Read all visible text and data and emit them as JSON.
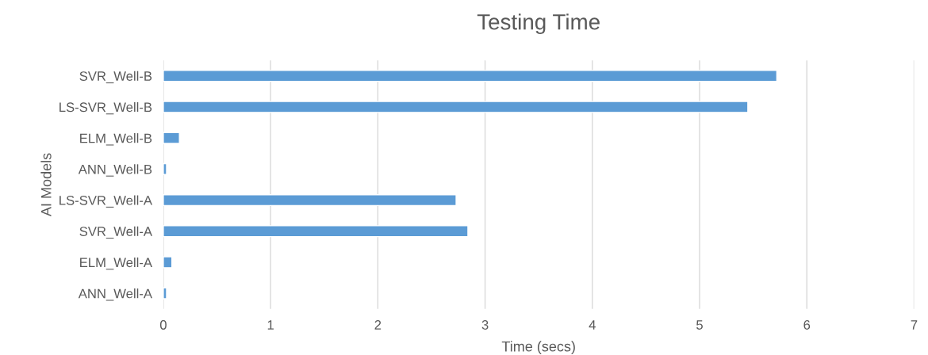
{
  "chart_data": {
    "type": "bar",
    "orientation": "horizontal",
    "title": "Testing Time",
    "xlabel": "Time (secs)",
    "ylabel": "AI Models",
    "categories": [
      "SVR_Well-B",
      "LS-SVR_Well-B",
      "ELM_Well-B",
      "ANN_Well-B",
      "LS-SVR_Well-A",
      "SVR_Well-A",
      "ELM_Well-A",
      "ANN_Well-A"
    ],
    "values": [
      5.72,
      5.45,
      0.15,
      0.03,
      2.73,
      2.84,
      0.08,
      0.03
    ],
    "color": "#5b9bd5",
    "xlim": [
      0,
      7
    ],
    "xticks": [
      0,
      1,
      2,
      3,
      4,
      5,
      6,
      7
    ],
    "grid": "x",
    "legend": false
  }
}
